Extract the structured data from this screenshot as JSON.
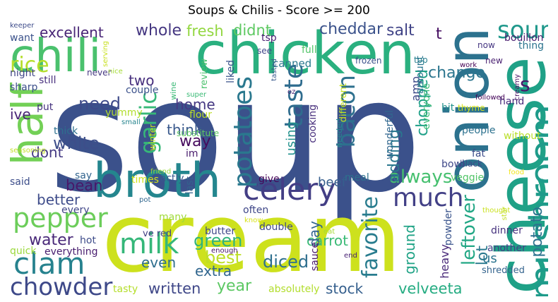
{
  "title": "Soups & Chilis - Score >= 200",
  "words": [
    {
      "t": "soup",
      "c": "#3b518b"
    },
    {
      "t": "cream",
      "c": "#cde11d"
    },
    {
      "t": "chicken",
      "c": "#2ab07f"
    },
    {
      "t": "broth",
      "c": "#24868e"
    },
    {
      "t": "cheese",
      "c": "#1fa187"
    },
    {
      "t": "onion",
      "c": "#2c728e"
    },
    {
      "t": "chili",
      "c": "#4ac16d"
    },
    {
      "t": "half",
      "c": "#73d056"
    },
    {
      "t": "celery",
      "c": "#433e85"
    },
    {
      "t": "mushroom",
      "c": "#1e9b8a"
    },
    {
      "t": "milk",
      "c": "#35b779"
    },
    {
      "t": "clam",
      "c": "#26828e"
    },
    {
      "t": "pepper",
      "c": "#6ccd5a"
    },
    {
      "t": "potatoes",
      "c": "#2a788e"
    },
    {
      "t": "much",
      "c": "#424086"
    },
    {
      "t": "sour",
      "c": "#1f988b"
    },
    {
      "t": "taste",
      "c": "#2f6c8e"
    },
    {
      "t": "chowder",
      "c": "#3e4989"
    },
    {
      "t": "bacon",
      "c": "#2d708e"
    },
    {
      "t": "rice",
      "c": "#b5de2b"
    },
    {
      "t": "garlic",
      "c": "#37b878"
    },
    {
      "t": "always",
      "c": "#46c06f"
    },
    {
      "t": "cheddar",
      "c": "#3b528b"
    },
    {
      "t": "whole",
      "c": "#453781"
    },
    {
      "t": "fresh",
      "c": "#93d741"
    },
    {
      "t": "didnt",
      "c": "#5ec962"
    },
    {
      "t": "change",
      "c": "#2b758e"
    },
    {
      "t": "excellent",
      "c": "#482576"
    },
    {
      "t": "salt",
      "c": "#414487"
    },
    {
      "t": "potato",
      "c": "#2c738e"
    },
    {
      "t": "written",
      "c": "#3f4788"
    },
    {
      "t": "year",
      "c": "#5cc863"
    },
    {
      "t": "best",
      "c": "#bddf26"
    },
    {
      "t": "green",
      "c": "#2fb47c"
    },
    {
      "t": "extra",
      "c": "#31668e"
    },
    {
      "t": "even",
      "c": "#2e6e8e"
    },
    {
      "t": "diced",
      "c": "#2e6f8e"
    },
    {
      "t": "stock",
      "c": "#355f8d"
    },
    {
      "t": "velveeta",
      "c": "#25ac82"
    },
    {
      "t": "favorite",
      "c": "#287c8e"
    },
    {
      "t": "leftover",
      "c": "#22a785"
    },
    {
      "t": "ground",
      "c": "#20a386"
    },
    {
      "t": "water",
      "c": "#482878"
    },
    {
      "t": "white",
      "c": "#3d4e8a"
    },
    {
      "t": "think",
      "c": "#38588c"
    },
    {
      "t": "need",
      "c": "#3e4a89"
    },
    {
      "t": "home",
      "c": "#453882"
    },
    {
      "t": "way",
      "c": "#460b5e"
    },
    {
      "t": "better",
      "c": "#3e4c8a"
    },
    {
      "t": "bean",
      "c": "#481769"
    },
    {
      "t": "beef",
      "c": "#355e8d"
    },
    {
      "t": "adding",
      "c": "#2a778e"
    },
    {
      "t": "using",
      "c": "#21918c"
    },
    {
      "t": "carrot",
      "c": "#3aba76"
    },
    {
      "t": "day",
      "c": "#32648e"
    },
    {
      "t": "lot",
      "c": "#29798e"
    },
    {
      "t": "two",
      "c": "#472f7d"
    },
    {
      "t": "ive",
      "c": "#482475"
    },
    {
      "t": "dont",
      "c": "#443983"
    },
    {
      "t": "chopped",
      "c": "#1fa088"
    },
    {
      "t": "amp",
      "c": "#3e4a89"
    },
    {
      "t": "t",
      "c": "#471063"
    },
    {
      "t": "s",
      "c": "#481a6c"
    },
    {
      "t": "us",
      "c": "#2b748e"
    },
    {
      "t": "people",
      "c": "#2c718e"
    },
    {
      "t": "bowl",
      "c": "#3f4889"
    },
    {
      "t": "veggie",
      "c": "#52c569"
    },
    {
      "t": "black",
      "c": "#3e4a89"
    },
    {
      "t": "fat",
      "c": "#3d4d8a"
    },
    {
      "t": "dinner",
      "c": "#46327e"
    },
    {
      "t": "another",
      "c": "#423f85"
    },
    {
      "t": "shredded",
      "c": "#33638d"
    },
    {
      "t": "heavy",
      "c": "#482979"
    },
    {
      "t": "powder",
      "c": "#3a548c"
    },
    {
      "t": "hit",
      "c": "#21918c"
    },
    {
      "t": "hand",
      "c": "#472a7a"
    },
    {
      "t": "bouillon",
      "c": "#481c6e"
    },
    {
      "t": "thing",
      "c": "#2b748e"
    },
    {
      "t": "now",
      "c": "#453581"
    },
    {
      "t": "new",
      "c": "#481f70"
    },
    {
      "t": "work",
      "c": "#440154"
    },
    {
      "t": "creamy",
      "c": "#481467"
    },
    {
      "t": "followed",
      "c": "#450559"
    },
    {
      "t": "thyme",
      "c": "#d5e21a"
    },
    {
      "t": "without",
      "c": "#b8de29"
    },
    {
      "t": "food",
      "c": "#f1e51d"
    },
    {
      "t": "thought",
      "c": "#cae11f"
    },
    {
      "t": "star",
      "c": "#c2df23"
    },
    {
      "t": "amount",
      "c": "#2a768e"
    },
    {
      "t": "top",
      "c": "#277e8e"
    },
    {
      "t": "frozen",
      "c": "#3b528b"
    },
    {
      "t": "wonderful",
      "c": "#31678e"
    },
    {
      "t": "everyone",
      "c": "#3aba76"
    },
    {
      "t": "cooking",
      "c": "#472e7c"
    },
    {
      "t": "sauce",
      "c": "#481769"
    },
    {
      "t": "end",
      "c": "#482173"
    },
    {
      "t": "eat",
      "c": "#a8db34"
    },
    {
      "t": "meal",
      "c": "#2d718e"
    },
    {
      "t": "needed",
      "c": "#228c8d"
    },
    {
      "t": "different",
      "c": "#c5e021"
    },
    {
      "t": "absolutely",
      "c": "#b2dd2d"
    },
    {
      "t": "double",
      "c": "#3f4889"
    },
    {
      "t": "often",
      "c": "#3f4788"
    },
    {
      "t": "give",
      "c": "#450559"
    },
    {
      "t": "last",
      "c": "#33638d"
    },
    {
      "t": "im",
      "c": "#481a6c"
    },
    {
      "t": "substitute",
      "c": "#5ec962"
    },
    {
      "t": "flour",
      "c": "#bddf26"
    },
    {
      "t": "super",
      "c": "#3aba76"
    },
    {
      "t": "oz",
      "c": "#482374"
    },
    {
      "t": "butter",
      "c": "#3f4889"
    },
    {
      "t": "enough",
      "c": "#481668"
    },
    {
      "t": "know",
      "c": "#d8e219"
    },
    {
      "t": "canned",
      "c": "#2a788e"
    },
    {
      "t": "full",
      "c": "#52c569"
    },
    {
      "t": "tsp",
      "c": "#482071"
    },
    {
      "t": "see",
      "c": "#404588"
    },
    {
      "t": "tasted",
      "c": "#38598c"
    },
    {
      "t": "review",
      "c": "#4ac16d"
    },
    {
      "t": "liked",
      "c": "#3a538b"
    },
    {
      "t": "wine",
      "c": "#3aba76"
    },
    {
      "t": "couple",
      "c": "#3b518b"
    },
    {
      "t": "winter",
      "c": "#c8e020"
    },
    {
      "t": "small",
      "c": "#25848e"
    },
    {
      "t": "friend",
      "c": "#9bd93c"
    },
    {
      "t": "exactly",
      "c": "#38588c"
    },
    {
      "t": "times",
      "c": "#d2e21b"
    },
    {
      "t": "pot",
      "c": "#31678e"
    },
    {
      "t": "many",
      "c": "#a0da39"
    },
    {
      "t": "ve red",
      "c": "#424086"
    },
    {
      "t": "hot",
      "c": "#3e4c8a"
    },
    {
      "t": "tasty",
      "c": "#b5de2b"
    },
    {
      "t": "everything",
      "c": "#481d6f"
    },
    {
      "t": "quick",
      "c": "#9bd93c"
    },
    {
      "t": "every",
      "c": "#404588"
    },
    {
      "t": "said",
      "c": "#3d4e8a"
    },
    {
      "t": "say",
      "c": "#32648e"
    },
    {
      "t": "seasoning",
      "c": "#c0df25"
    },
    {
      "t": "thick",
      "c": "#2d708e"
    },
    {
      "t": "yummy",
      "c": "#b2dd2d"
    },
    {
      "t": "put",
      "c": "#46337f"
    },
    {
      "t": "sharp",
      "c": "#3c4f8a"
    },
    {
      "t": "night",
      "c": "#404688"
    },
    {
      "t": "still",
      "c": "#472f7d"
    },
    {
      "t": "never",
      "c": "#453882"
    },
    {
      "t": "nice",
      "c": "#a5db36"
    },
    {
      "t": "serving",
      "c": "#c8e020"
    },
    {
      "t": "keeper",
      "c": "#3e4c8a"
    },
    {
      "t": "want",
      "c": "#3b528b"
    }
  ]
}
